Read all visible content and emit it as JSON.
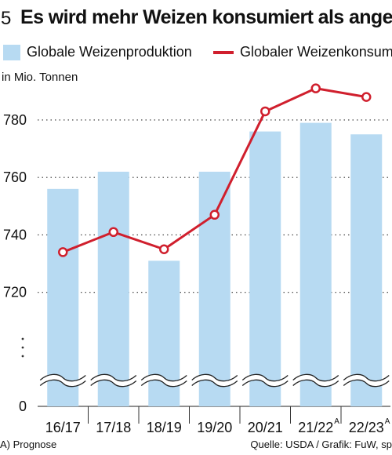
{
  "header": {
    "number": "5",
    "title": "Es wird mehr Weizen konsumiert als angebaut"
  },
  "legend": {
    "bar_label": "Globale Weizenproduktion",
    "line_label": "Globaler Weizenkonsum"
  },
  "unit_label": "in Mio. Tonnen",
  "footnote": "A) Prognose",
  "source": "Quelle: USDA / Grafik: FuW, sp",
  "colors": {
    "bar": "#b7daf2",
    "line": "#d01f2d"
  },
  "chart_data": {
    "type": "bar",
    "categories": [
      "16/17",
      "17/18",
      "18/19",
      "19/20",
      "20/21",
      "21/22",
      "22/23"
    ],
    "category_superscripts": [
      "",
      "",
      "",
      "",
      "",
      "A",
      "A"
    ],
    "series": [
      {
        "name": "Globale Weizenproduktion",
        "type": "bar",
        "values": [
          756,
          762,
          731,
          762,
          776,
          779,
          775
        ]
      },
      {
        "name": "Globaler Weizenkonsum",
        "type": "line",
        "values": [
          734,
          741,
          735,
          747,
          783,
          791,
          788
        ]
      }
    ],
    "ylabel": "in Mio. Tonnen",
    "yticks": [
      0,
      720,
      740,
      760,
      780
    ],
    "ylim": [
      712,
      795
    ],
    "axis_break": true,
    "grid": "dotted horizontal"
  }
}
